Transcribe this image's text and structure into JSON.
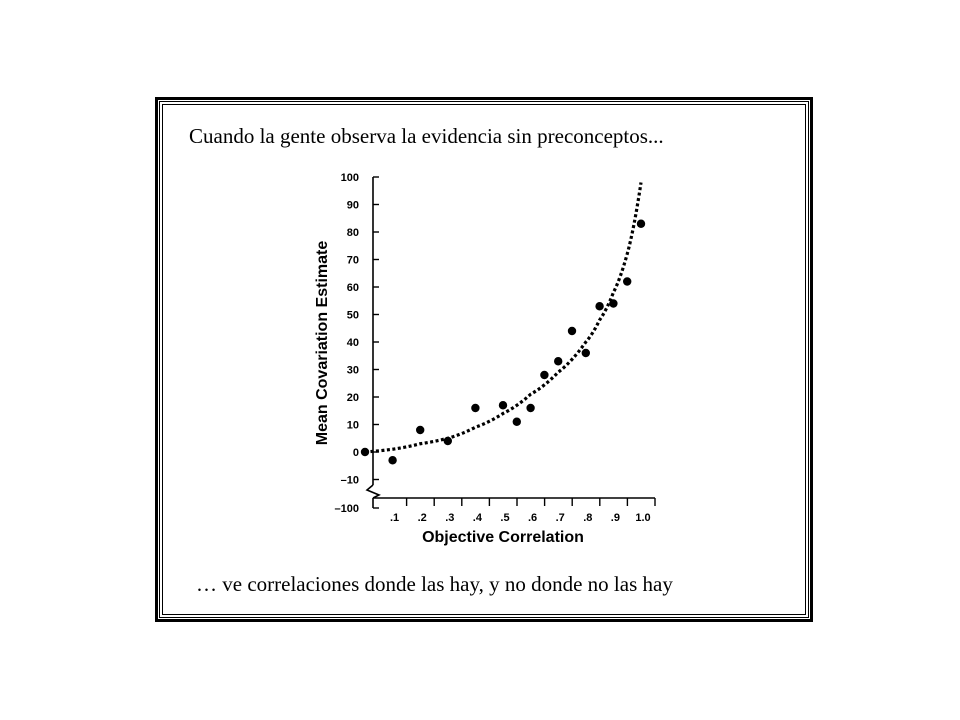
{
  "slide": {
    "caption_top": "Cuando la gente observa la evidencia sin preconceptos...",
    "caption_bottom": "… ve correlaciones donde las hay, y no donde no las hay"
  },
  "chart_data": {
    "type": "scatter",
    "title": "",
    "xlabel": "Objective Correlation",
    "ylabel": "Mean Covariation Estimate",
    "xlim": [
      0,
      1.0
    ],
    "ylim": [
      -10,
      100
    ],
    "y_break_label": "–100",
    "x_ticks": [
      ".1",
      ".2",
      ".3",
      ".4",
      ".5",
      ".6",
      ".7",
      ".8",
      ".9",
      "1.0"
    ],
    "y_ticks": [
      "100",
      "90",
      "80",
      "70",
      "60",
      "50",
      "40",
      "30",
      "20",
      "10",
      "0",
      "–10"
    ],
    "grid": false,
    "points": [
      {
        "x": 0.0,
        "y": 0
      },
      {
        "x": 0.1,
        "y": -3
      },
      {
        "x": 0.2,
        "y": 8
      },
      {
        "x": 0.3,
        "y": 4
      },
      {
        "x": 0.4,
        "y": 16
      },
      {
        "x": 0.5,
        "y": 17
      },
      {
        "x": 0.55,
        "y": 11
      },
      {
        "x": 0.6,
        "y": 16
      },
      {
        "x": 0.65,
        "y": 28
      },
      {
        "x": 0.7,
        "y": 33
      },
      {
        "x": 0.75,
        "y": 44
      },
      {
        "x": 0.8,
        "y": 36
      },
      {
        "x": 0.85,
        "y": 53
      },
      {
        "x": 0.9,
        "y": 54
      },
      {
        "x": 0.95,
        "y": 62
      },
      {
        "x": 1.0,
        "y": 83
      }
    ],
    "trend_curve": [
      {
        "x": 0.0,
        "y": 0
      },
      {
        "x": 0.1,
        "y": 1
      },
      {
        "x": 0.2,
        "y": 3
      },
      {
        "x": 0.3,
        "y": 5
      },
      {
        "x": 0.4,
        "y": 9
      },
      {
        "x": 0.5,
        "y": 14
      },
      {
        "x": 0.6,
        "y": 21
      },
      {
        "x": 0.7,
        "y": 29
      },
      {
        "x": 0.8,
        "y": 40
      },
      {
        "x": 0.85,
        "y": 48
      },
      {
        "x": 0.9,
        "y": 58
      },
      {
        "x": 0.95,
        "y": 72
      },
      {
        "x": 1.0,
        "y": 98
      }
    ]
  }
}
